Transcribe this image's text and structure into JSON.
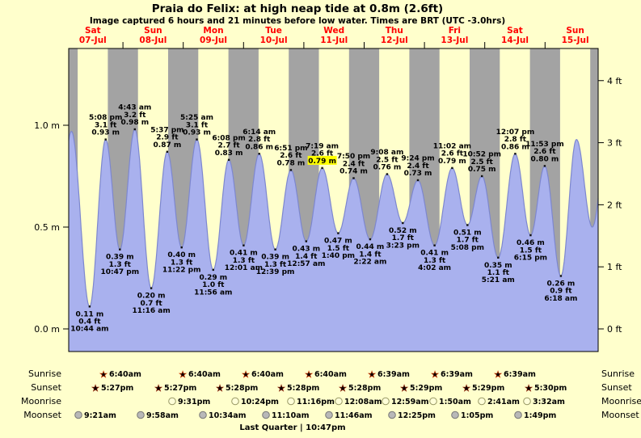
{
  "title": "Praia do Felix: at high  neap tide at 0.8m (2.6ft)",
  "subtitle": "Image captured 6 hours and 21 minutes before low water. Times are BRT (UTC -3.0hrs)",
  "colors": {
    "background": "#ffffcc",
    "night_band": "#a3a3a3",
    "tide_fill": "#a9b1ee",
    "tide_stroke": "#7d87cf",
    "day_label": "#ff0000",
    "highlight": "#ffff00",
    "sunrise_star": "#f2c118",
    "sunrise_star_edge": "#cc3300",
    "sunset_star": "#e23b12",
    "moonrise_fill": "#ffffd8",
    "moonrise_edge": "#999966",
    "moonset_fill": "#b8b8b8",
    "moonset_edge": "#777777"
  },
  "chart_data": {
    "type": "area",
    "title": "Praia do Felix tide curve",
    "x_axis": {
      "days": [
        {
          "dow": "Sat",
          "date": "07-Jul"
        },
        {
          "dow": "Sun",
          "date": "08-Jul"
        },
        {
          "dow": "Mon",
          "date": "09-Jul"
        },
        {
          "dow": "Tue",
          "date": "10-Jul"
        },
        {
          "dow": "Wed",
          "date": "11-Jul"
        },
        {
          "dow": "Thu",
          "date": "12-Jul"
        },
        {
          "dow": "Fri",
          "date": "13-Jul"
        },
        {
          "dow": "Sat",
          "date": "14-Jul"
        },
        {
          "dow": "Sun",
          "date": "15-Jul"
        }
      ]
    },
    "y_axis_left": {
      "unit": "m",
      "values": [
        0.0,
        0.5,
        1.0
      ],
      "labels": [
        "0.0 m",
        "0.5 m",
        "1.0 m"
      ]
    },
    "y_axis_right": {
      "unit": "ft",
      "values": [
        0,
        1,
        2,
        3,
        4
      ],
      "labels": [
        "0 ft",
        "1 ft",
        "2 ft",
        "3 ft",
        "4 ft"
      ]
    },
    "tide_events": [
      {
        "type": "low",
        "t_hours": 10.73,
        "height_m": 0.11,
        "lines": [
          "0.11 m",
          "0.4 ft",
          "10:44 am"
        ]
      },
      {
        "type": "high",
        "t_hours": 17.13,
        "height_m": 0.93,
        "lines": [
          "5:08 pm",
          "3.1 ft",
          "0.93 m"
        ]
      },
      {
        "type": "low",
        "t_hours": 22.78,
        "height_m": 0.39,
        "lines": [
          "0.39 m",
          "1.3 ft",
          "10:47 pm"
        ]
      },
      {
        "type": "high",
        "t_hours": 28.72,
        "height_m": 0.98,
        "lines": [
          "4:43 am",
          "3.2 ft",
          "0.98 m"
        ]
      },
      {
        "type": "low",
        "t_hours": 35.27,
        "height_m": 0.2,
        "lines": [
          "0.20 m",
          "0.7 ft",
          "11:16 am"
        ]
      },
      {
        "type": "high",
        "t_hours": 41.62,
        "height_m": 0.87,
        "lines": [
          "5:37 pm",
          "2.9 ft",
          "0.87 m"
        ]
      },
      {
        "type": "low",
        "t_hours": 47.37,
        "height_m": 0.4,
        "lines": [
          "0.40 m",
          "1.3 ft",
          "11:22 pm"
        ]
      },
      {
        "type": "high",
        "t_hours": 53.42,
        "height_m": 0.93,
        "lines": [
          "5:25 am",
          "3.1 ft",
          "0.93 m"
        ]
      },
      {
        "type": "low",
        "t_hours": 59.93,
        "height_m": 0.29,
        "lines": [
          "0.29 m",
          "1.0 ft",
          "11:56 am"
        ]
      },
      {
        "type": "high",
        "t_hours": 66.13,
        "height_m": 0.83,
        "lines": [
          "6:08 pm",
          "2.7 ft",
          "0.83 m"
        ]
      },
      {
        "type": "low",
        "t_hours": 72.02,
        "height_m": 0.41,
        "lines": [
          "0.41 m",
          "1.3 ft",
          "12:01 am"
        ]
      },
      {
        "type": "high",
        "t_hours": 78.23,
        "height_m": 0.86,
        "lines": [
          "6:14 am",
          "2.8 ft",
          "0.86 m"
        ]
      },
      {
        "type": "low",
        "t_hours": 84.65,
        "height_m": 0.39,
        "lines": [
          "0.39 m",
          "1.3 ft",
          "12:39 pm"
        ]
      },
      {
        "type": "high",
        "t_hours": 90.85,
        "height_m": 0.78,
        "lines": [
          "6:51 pm",
          "2.6 ft",
          "0.78 m"
        ]
      },
      {
        "type": "low",
        "t_hours": 96.95,
        "height_m": 0.43,
        "lines": [
          "0.43 m",
          "1.4 ft",
          "12:57 am"
        ]
      },
      {
        "type": "high",
        "t_hours": 103.32,
        "height_m": 0.79,
        "lines": [
          "7:19 am",
          "2.6 ft",
          "0.79 m"
        ],
        "highlight": true
      },
      {
        "type": "low",
        "t_hours": 109.67,
        "height_m": 0.47,
        "lines": [
          "0.47 m",
          "1.5 ft",
          "1:40 pm"
        ]
      },
      {
        "type": "high",
        "t_hours": 115.83,
        "height_m": 0.74,
        "lines": [
          "7:50 pm",
          "2.4 ft",
          "0.74 m"
        ]
      },
      {
        "type": "low",
        "t_hours": 122.37,
        "height_m": 0.44,
        "lines": [
          "0.44 m",
          "1.4 ft",
          "2:22 am"
        ]
      },
      {
        "type": "high",
        "t_hours": 129.13,
        "height_m": 0.76,
        "lines": [
          "9:08 am",
          "2.5 ft",
          "0.76 m"
        ]
      },
      {
        "type": "low",
        "t_hours": 135.38,
        "height_m": 0.52,
        "lines": [
          "0.52 m",
          "1.7 ft",
          "3:23 pm"
        ]
      },
      {
        "type": "high",
        "t_hours": 141.4,
        "height_m": 0.73,
        "lines": [
          "9:24 pm",
          "2.4 ft",
          "0.73 m"
        ]
      },
      {
        "type": "low",
        "t_hours": 148.03,
        "height_m": 0.41,
        "lines": [
          "0.41 m",
          "1.3 ft",
          "4:02 am"
        ]
      },
      {
        "type": "high",
        "t_hours": 155.03,
        "height_m": 0.79,
        "lines": [
          "11:02 am",
          "2.6 ft",
          "0.79 m"
        ]
      },
      {
        "type": "low",
        "t_hours": 161.13,
        "height_m": 0.51,
        "lines": [
          "0.51 m",
          "1.7 ft",
          "5:08 pm"
        ]
      },
      {
        "type": "high",
        "t_hours": 166.87,
        "height_m": 0.75,
        "lines": [
          "10:52 pm",
          "2.5 ft",
          "0.75 m"
        ]
      },
      {
        "type": "low",
        "t_hours": 173.35,
        "height_m": 0.35,
        "lines": [
          "0.35 m",
          "1.1 ft",
          "5:21 am"
        ]
      },
      {
        "type": "high",
        "t_hours": 180.12,
        "height_m": 0.86,
        "lines": [
          "12:07 pm",
          "2.8 ft",
          "0.86 m"
        ]
      },
      {
        "type": "low",
        "t_hours": 186.25,
        "height_m": 0.46,
        "lines": [
          "0.46 m",
          "1.5 ft",
          "6:15 pm"
        ]
      },
      {
        "type": "high",
        "t_hours": 191.88,
        "height_m": 0.8,
        "lines": [
          "11:53 pm",
          "2.6 ft",
          "0.80 m"
        ]
      },
      {
        "type": "low",
        "t_hours": 198.3,
        "height_m": 0.26,
        "lines": [
          "0.26 m",
          "0.9 ft",
          "6:18 am"
        ]
      }
    ]
  },
  "astro": {
    "row_labels": [
      "Sunrise",
      "Sunset",
      "Moonrise",
      "Moonset"
    ],
    "sunrise": {
      "icon": "sunrise-icon",
      "times": [
        "6:40am",
        "6:40am",
        "6:40am",
        "6:40am",
        "6:39am",
        "6:39am",
        "6:39am"
      ]
    },
    "sunset": {
      "icon": "sunset-icon",
      "times": [
        "5:27pm",
        "5:27pm",
        "5:28pm",
        "5:28pm",
        "5:28pm",
        "5:29pm",
        "5:29pm",
        "5:30pm"
      ]
    },
    "moonrise": {
      "icon": "moonrise-icon",
      "times": [
        "9:31pm",
        "10:24pm",
        "11:16pm",
        "12:08am",
        "12:59am",
        "1:50am",
        "2:41am",
        "3:32am"
      ]
    },
    "moonset": {
      "icon": "moonset-icon",
      "times": [
        "9:21am",
        "9:58am",
        "10:34am",
        "11:10am",
        "11:46am",
        "12:25pm",
        "1:05pm",
        "1:49pm"
      ]
    },
    "moon_phase": "Last Quarter | 10:47pm"
  }
}
